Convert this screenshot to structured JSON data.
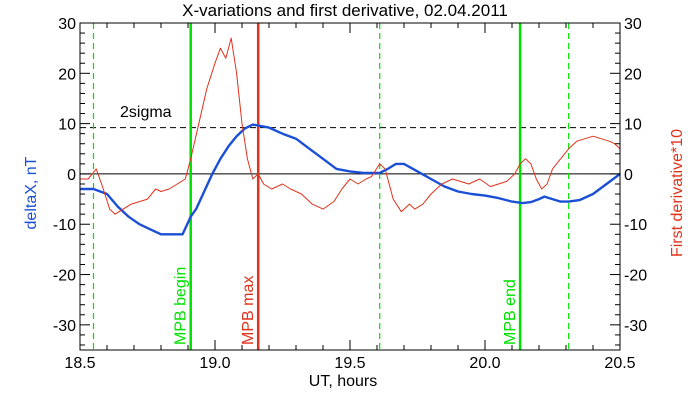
{
  "chart_data": {
    "type": "line",
    "title": "X-variations and first derivative, 02.04.2011",
    "xlabel": "UT, hours",
    "ylabel_left": "deltaX, nT",
    "ylabel_right": "First derivative*10",
    "xlim": [
      18.5,
      20.5
    ],
    "ylim": [
      -35,
      30
    ],
    "x_ticks": [
      "18.5",
      "19.0",
      "19.5",
      "20.0",
      "20.5"
    ],
    "y_ticks_left": [
      "-30",
      "-20",
      "-10",
      "0",
      "10",
      "20",
      "30"
    ],
    "y_ticks_right": [
      "-30",
      "-20",
      "-10",
      "0",
      "10",
      "20",
      "30"
    ],
    "grid": false,
    "colors": {
      "deltaX": "#1a4fd6",
      "derivative": "#e0321c",
      "mpb": "#00e000",
      "mpb_max": "#e0321c",
      "axes": "#000000"
    },
    "sigma_label": "2sigma",
    "sigma_level": 9.2,
    "zero_level": 0,
    "vertical_lines": [
      {
        "label": "MPB begin",
        "x": 18.91,
        "style": "solid",
        "color": "#00e000"
      },
      {
        "label": "MPB max",
        "x": 19.16,
        "style": "solid",
        "color": "#e0321c"
      },
      {
        "label": "MPB end",
        "x": 20.13,
        "style": "solid",
        "color": "#00e000"
      }
    ],
    "dashed_lines": [
      {
        "x": 18.55,
        "color": "#00e000"
      },
      {
        "x": 19.61,
        "color": "#00e000"
      },
      {
        "x": 20.31,
        "color": "#00e000"
      }
    ],
    "series": [
      {
        "key": "deltaX",
        "x": [
          18.5,
          18.55,
          18.6,
          18.64,
          18.68,
          18.72,
          18.76,
          18.8,
          18.84,
          18.88,
          18.91,
          18.93,
          18.96,
          18.99,
          19.02,
          19.05,
          19.08,
          19.11,
          19.14,
          19.17,
          19.2,
          19.25,
          19.3,
          19.35,
          19.4,
          19.45,
          19.5,
          19.55,
          19.61,
          19.64,
          19.67,
          19.7,
          19.75,
          19.8,
          19.85,
          19.9,
          19.95,
          20.0,
          20.05,
          20.1,
          20.14,
          20.17,
          20.2,
          20.22,
          20.25,
          20.28,
          20.31,
          20.35,
          20.4,
          20.45,
          20.5
        ],
        "y": [
          -3,
          -3,
          -4,
          -6.5,
          -8.5,
          -10,
          -11,
          -12,
          -12,
          -12,
          -8.5,
          -7,
          -3.5,
          0,
          3,
          5.5,
          7.5,
          9,
          9.8,
          9.5,
          9.2,
          8,
          7,
          5,
          3,
          1,
          0.5,
          0.2,
          0.2,
          1,
          2,
          2,
          0.5,
          -1,
          -2.5,
          -3.5,
          -4,
          -4.3,
          -4.8,
          -5.5,
          -5.8,
          -5.6,
          -5,
          -4.5,
          -5,
          -5.5,
          -5.5,
          -5.2,
          -4,
          -2,
          0
        ]
      },
      {
        "key": "derivative",
        "x": [
          18.5,
          18.53,
          18.56,
          18.58,
          18.61,
          18.63,
          18.66,
          18.69,
          18.72,
          18.75,
          18.78,
          18.8,
          18.83,
          18.86,
          18.89,
          18.91,
          18.94,
          18.97,
          19.0,
          19.02,
          19.04,
          19.06,
          19.08,
          19.1,
          19.12,
          19.14,
          19.16,
          19.18,
          19.21,
          19.25,
          19.28,
          19.32,
          19.36,
          19.4,
          19.44,
          19.47,
          19.5,
          19.53,
          19.56,
          19.58,
          19.61,
          19.63,
          19.66,
          19.69,
          19.72,
          19.74,
          19.77,
          19.8,
          19.84,
          19.88,
          19.91,
          19.94,
          19.98,
          20.02,
          20.05,
          20.08,
          20.11,
          20.13,
          20.15,
          20.17,
          20.19,
          20.21,
          20.23,
          20.25,
          20.28,
          20.31,
          20.34,
          20.37,
          20.4,
          20.43,
          20.46,
          20.48,
          20.5
        ],
        "y": [
          -1,
          -1,
          1,
          -2,
          -7,
          -8,
          -7,
          -6,
          -5.5,
          -5,
          -3,
          -3.5,
          -3,
          -2,
          -1,
          3,
          10,
          17,
          22,
          25,
          23,
          27,
          20,
          10,
          3,
          -1,
          0,
          -2,
          -3,
          -2,
          -3,
          -4,
          -6,
          -7,
          -5.5,
          -3,
          -1,
          -2,
          -1,
          -0.5,
          2,
          1,
          -5,
          -7.5,
          -6,
          -7,
          -6,
          -4,
          -2,
          -1,
          -1.5,
          -2,
          -1,
          -2.5,
          -2,
          -1.5,
          0,
          2,
          3,
          2,
          -1,
          -3,
          -2,
          1,
          3,
          5,
          6.5,
          7,
          7.5,
          7,
          6.5,
          6,
          5
        ]
      }
    ]
  }
}
